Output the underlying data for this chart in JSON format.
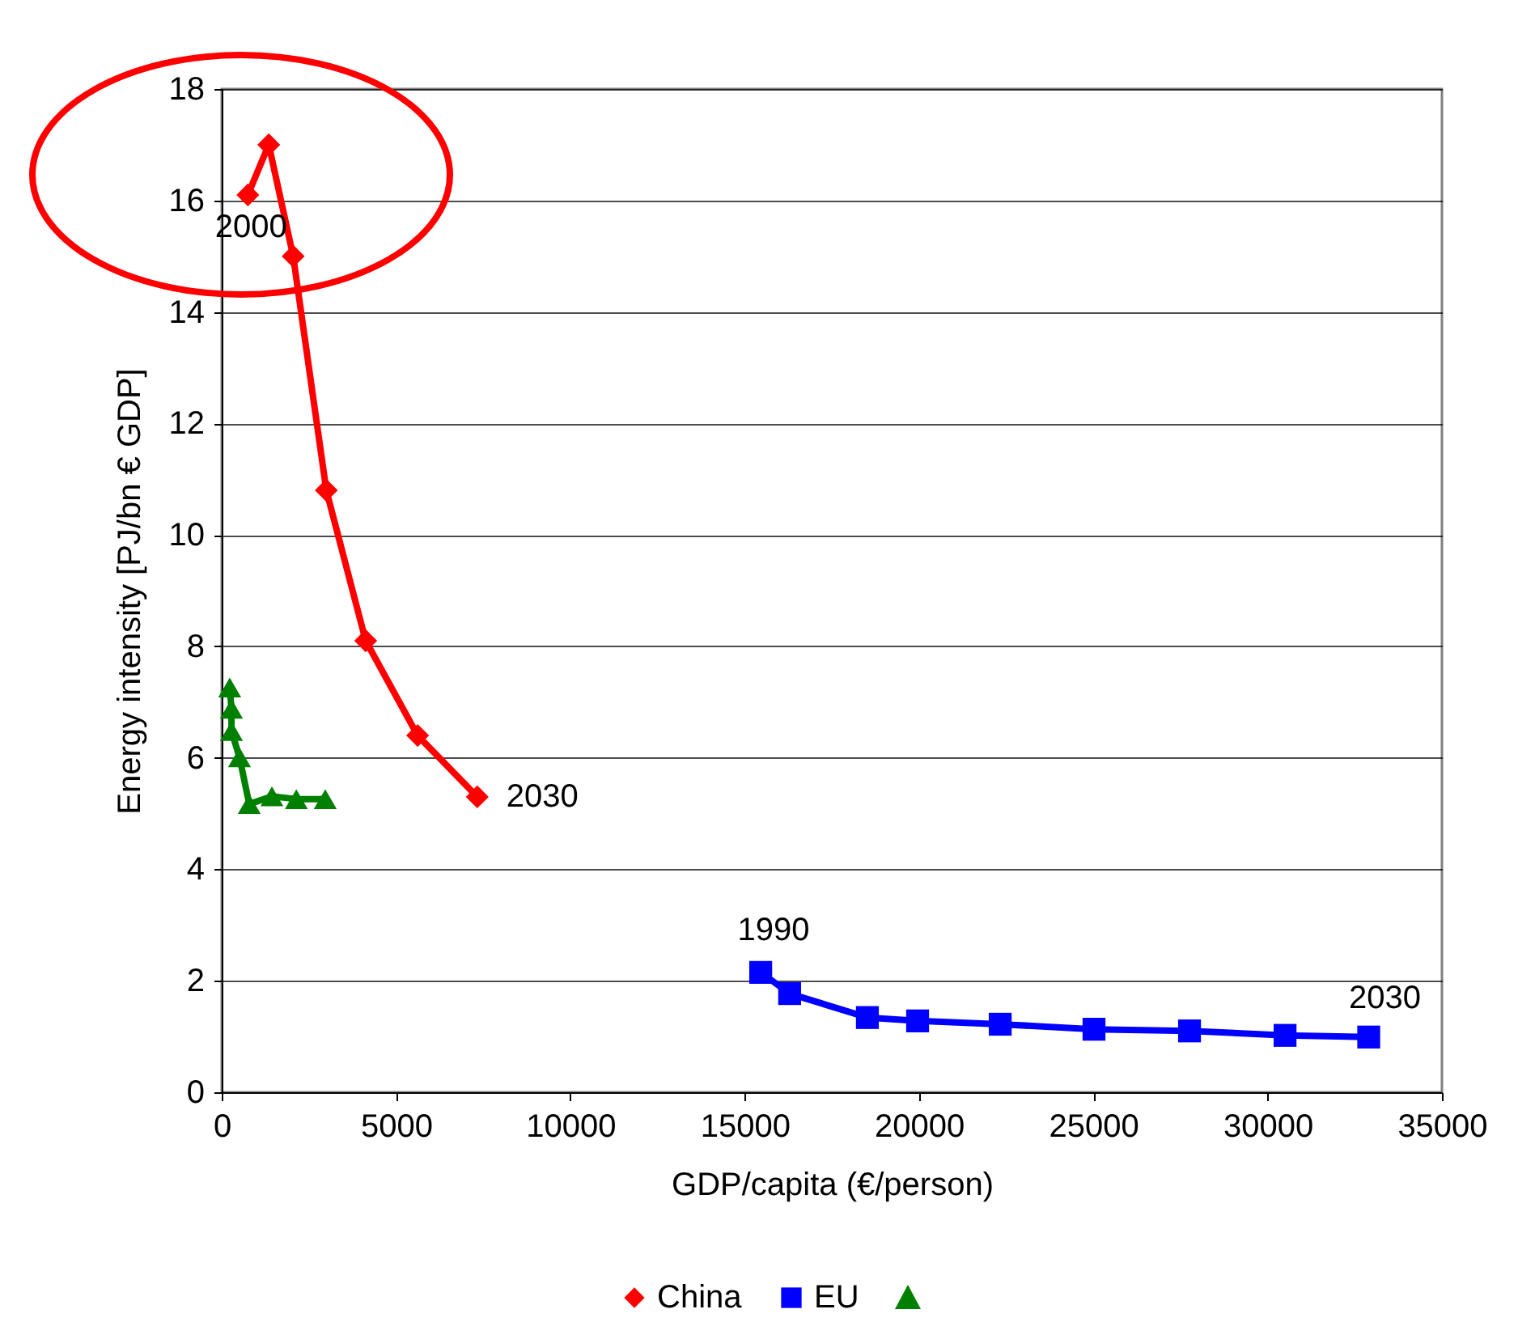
{
  "chart_data": {
    "type": "line",
    "xlabel": "GDP/capita (€/person)",
    "ylabel": "Energy intensity [PJ/bn € GDP]",
    "xlim": [
      0,
      35000
    ],
    "xticks": [
      0,
      5000,
      10000,
      15000,
      20000,
      25000,
      30000,
      35000
    ],
    "ylim": [
      0,
      18
    ],
    "yticks": [
      0,
      2,
      4,
      6,
      8,
      10,
      12,
      14,
      16,
      18
    ],
    "grid": "y",
    "legend": "bottom",
    "series": [
      {
        "name": "China",
        "color": "#ff0000",
        "marker": "diamond",
        "x": [
          750,
          1350,
          2050,
          3000,
          4130,
          5620,
          7330
        ],
        "values": [
          16.1,
          17.0,
          15.0,
          10.8,
          8.1,
          6.4,
          5.3
        ]
      },
      {
        "name": "EU",
        "color": "#0000ff",
        "marker": "square",
        "x": [
          15460,
          16290,
          18520,
          19960,
          22330,
          25020,
          27760,
          30500,
          32900
        ],
        "values": [
          2.15,
          1.77,
          1.34,
          1.28,
          1.22,
          1.13,
          1.1,
          1.02,
          0.99
        ]
      },
      {
        "color": "#008000",
        "marker": "triangle",
        "x": [
          230,
          280,
          280,
          510,
          790,
          1440,
          2140,
          2970
        ],
        "values": [
          7.26,
          6.88,
          6.48,
          6.01,
          5.17,
          5.31,
          5.26,
          5.26
        ]
      }
    ],
    "annotations": [
      {
        "text": "2000",
        "x": 750,
        "y": 16.1
      },
      {
        "text": "2030",
        "x": 7330,
        "y": 5.3
      },
      {
        "text": "1990",
        "x": 15460,
        "y": 2.15
      },
      {
        "text": "2030",
        "x": 32900,
        "y": 0.99
      }
    ]
  }
}
